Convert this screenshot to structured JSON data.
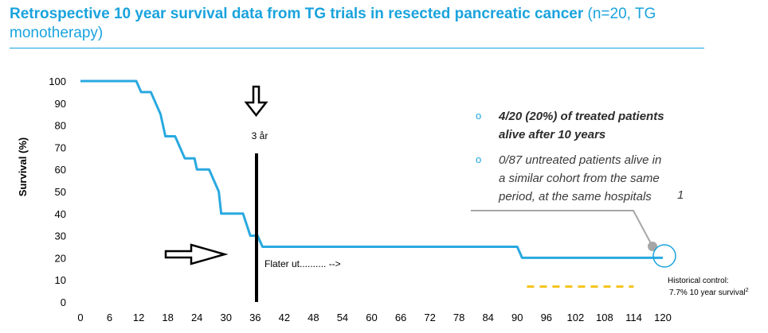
{
  "title": {
    "bold": "Retrospective 10 year survival data from TG trials in resected pancreatic cancer",
    "normal": " (n=20, TG monotherapy)"
  },
  "colors": {
    "accent": "#1aa3dd",
    "curve": "#29a9e0",
    "control": "#f5c31b",
    "pointer": "#a6a6a6"
  },
  "chart_data": {
    "type": "line",
    "ylabel": "Survival (%)",
    "xlabel": "",
    "xlim": [
      0,
      120
    ],
    "ylim": [
      0,
      100
    ],
    "xticks": [
      0,
      6,
      12,
      18,
      24,
      30,
      36,
      42,
      48,
      54,
      60,
      66,
      72,
      78,
      84,
      90,
      96,
      102,
      108,
      114,
      120
    ],
    "yticks": [
      0,
      10,
      20,
      30,
      40,
      50,
      60,
      70,
      80,
      90,
      100
    ],
    "series": [
      {
        "points": [
          [
            0,
            100
          ],
          [
            11.5,
            100
          ],
          [
            12.5,
            95
          ],
          [
            14.5,
            95
          ],
          [
            15.5,
            90
          ],
          [
            16.5,
            85
          ],
          [
            17,
            80
          ],
          [
            17.5,
            75
          ],
          [
            19.5,
            75
          ],
          [
            20.5,
            70
          ],
          [
            21.5,
            65
          ],
          [
            23.5,
            65
          ],
          [
            24,
            60
          ],
          [
            26.5,
            60
          ],
          [
            27.5,
            55
          ],
          [
            28.5,
            50
          ],
          [
            29,
            40
          ],
          [
            33.5,
            40
          ],
          [
            35,
            30
          ],
          [
            36.5,
            30
          ],
          [
            37.5,
            25
          ],
          [
            90,
            25
          ],
          [
            91,
            20
          ],
          [
            120,
            20
          ]
        ]
      }
    ],
    "historical_control": {
      "y": 7.7,
      "x_range": [
        92,
        114
      ],
      "label_1": "Historical control:",
      "label_2": "7.7% 10 year survival",
      "sup": "2"
    }
  },
  "annotations": {
    "three_year": "3 år",
    "flater": "Flater ut.......... -->",
    "note1_l1": "4/20 (20%) of treated patients",
    "note1_l2": "alive after 10 years",
    "note2_l1": "0/87 untreated patients alive in",
    "note2_l2": "a similar cohort from the same",
    "note2_l3": "period, at the same hospitals",
    "note2_ref": "1",
    "bullet": "o"
  }
}
